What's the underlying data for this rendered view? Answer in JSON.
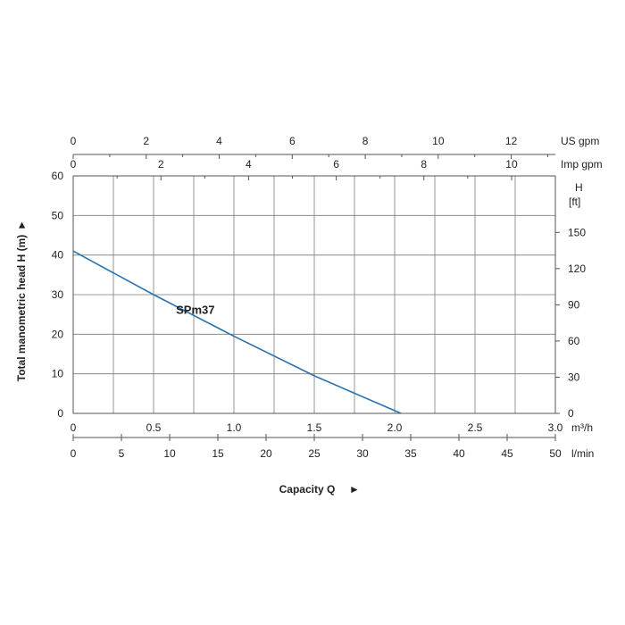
{
  "chart_data": {
    "type": "line",
    "ylabel": "Total manometric head H (m)",
    "xlabel": "Capacity Q",
    "ylim": [
      0,
      60
    ],
    "xlim": [
      0,
      3.0
    ],
    "grid": true,
    "series": [
      {
        "name": "SPm37",
        "x": [
          0,
          0.5,
          1.0,
          1.5,
          2.04
        ],
        "y": [
          41,
          30,
          19.5,
          9.5,
          0
        ]
      }
    ],
    "y_ticks": [
      "0",
      "10",
      "20",
      "30",
      "40",
      "50",
      "60"
    ],
    "axes": {
      "m3h": {
        "unit": "m³/h",
        "ticks": [
          "0",
          "0.5",
          "1.0",
          "1.5",
          "2.0",
          "2.5",
          "3.0"
        ]
      },
      "lmin": {
        "unit": "l/min",
        "ticks": [
          "0",
          "5",
          "10",
          "15",
          "20",
          "25",
          "30",
          "35",
          "40",
          "45",
          "50"
        ]
      },
      "usgpm": {
        "unit": "US gpm",
        "ticks": [
          "0",
          "2",
          "4",
          "6",
          "8",
          "10",
          "12"
        ]
      },
      "impgpm": {
        "unit": "Imp gpm",
        "ticks": [
          "0",
          "2",
          "4",
          "6",
          "8",
          "10"
        ]
      },
      "ft": {
        "unit_top": "H",
        "unit_bottom": "[ft]",
        "ticks": [
          "0",
          "30",
          "60",
          "90",
          "120",
          "150"
        ]
      }
    },
    "arrow_glyph": "►",
    "line_color": "#2a73b0"
  }
}
